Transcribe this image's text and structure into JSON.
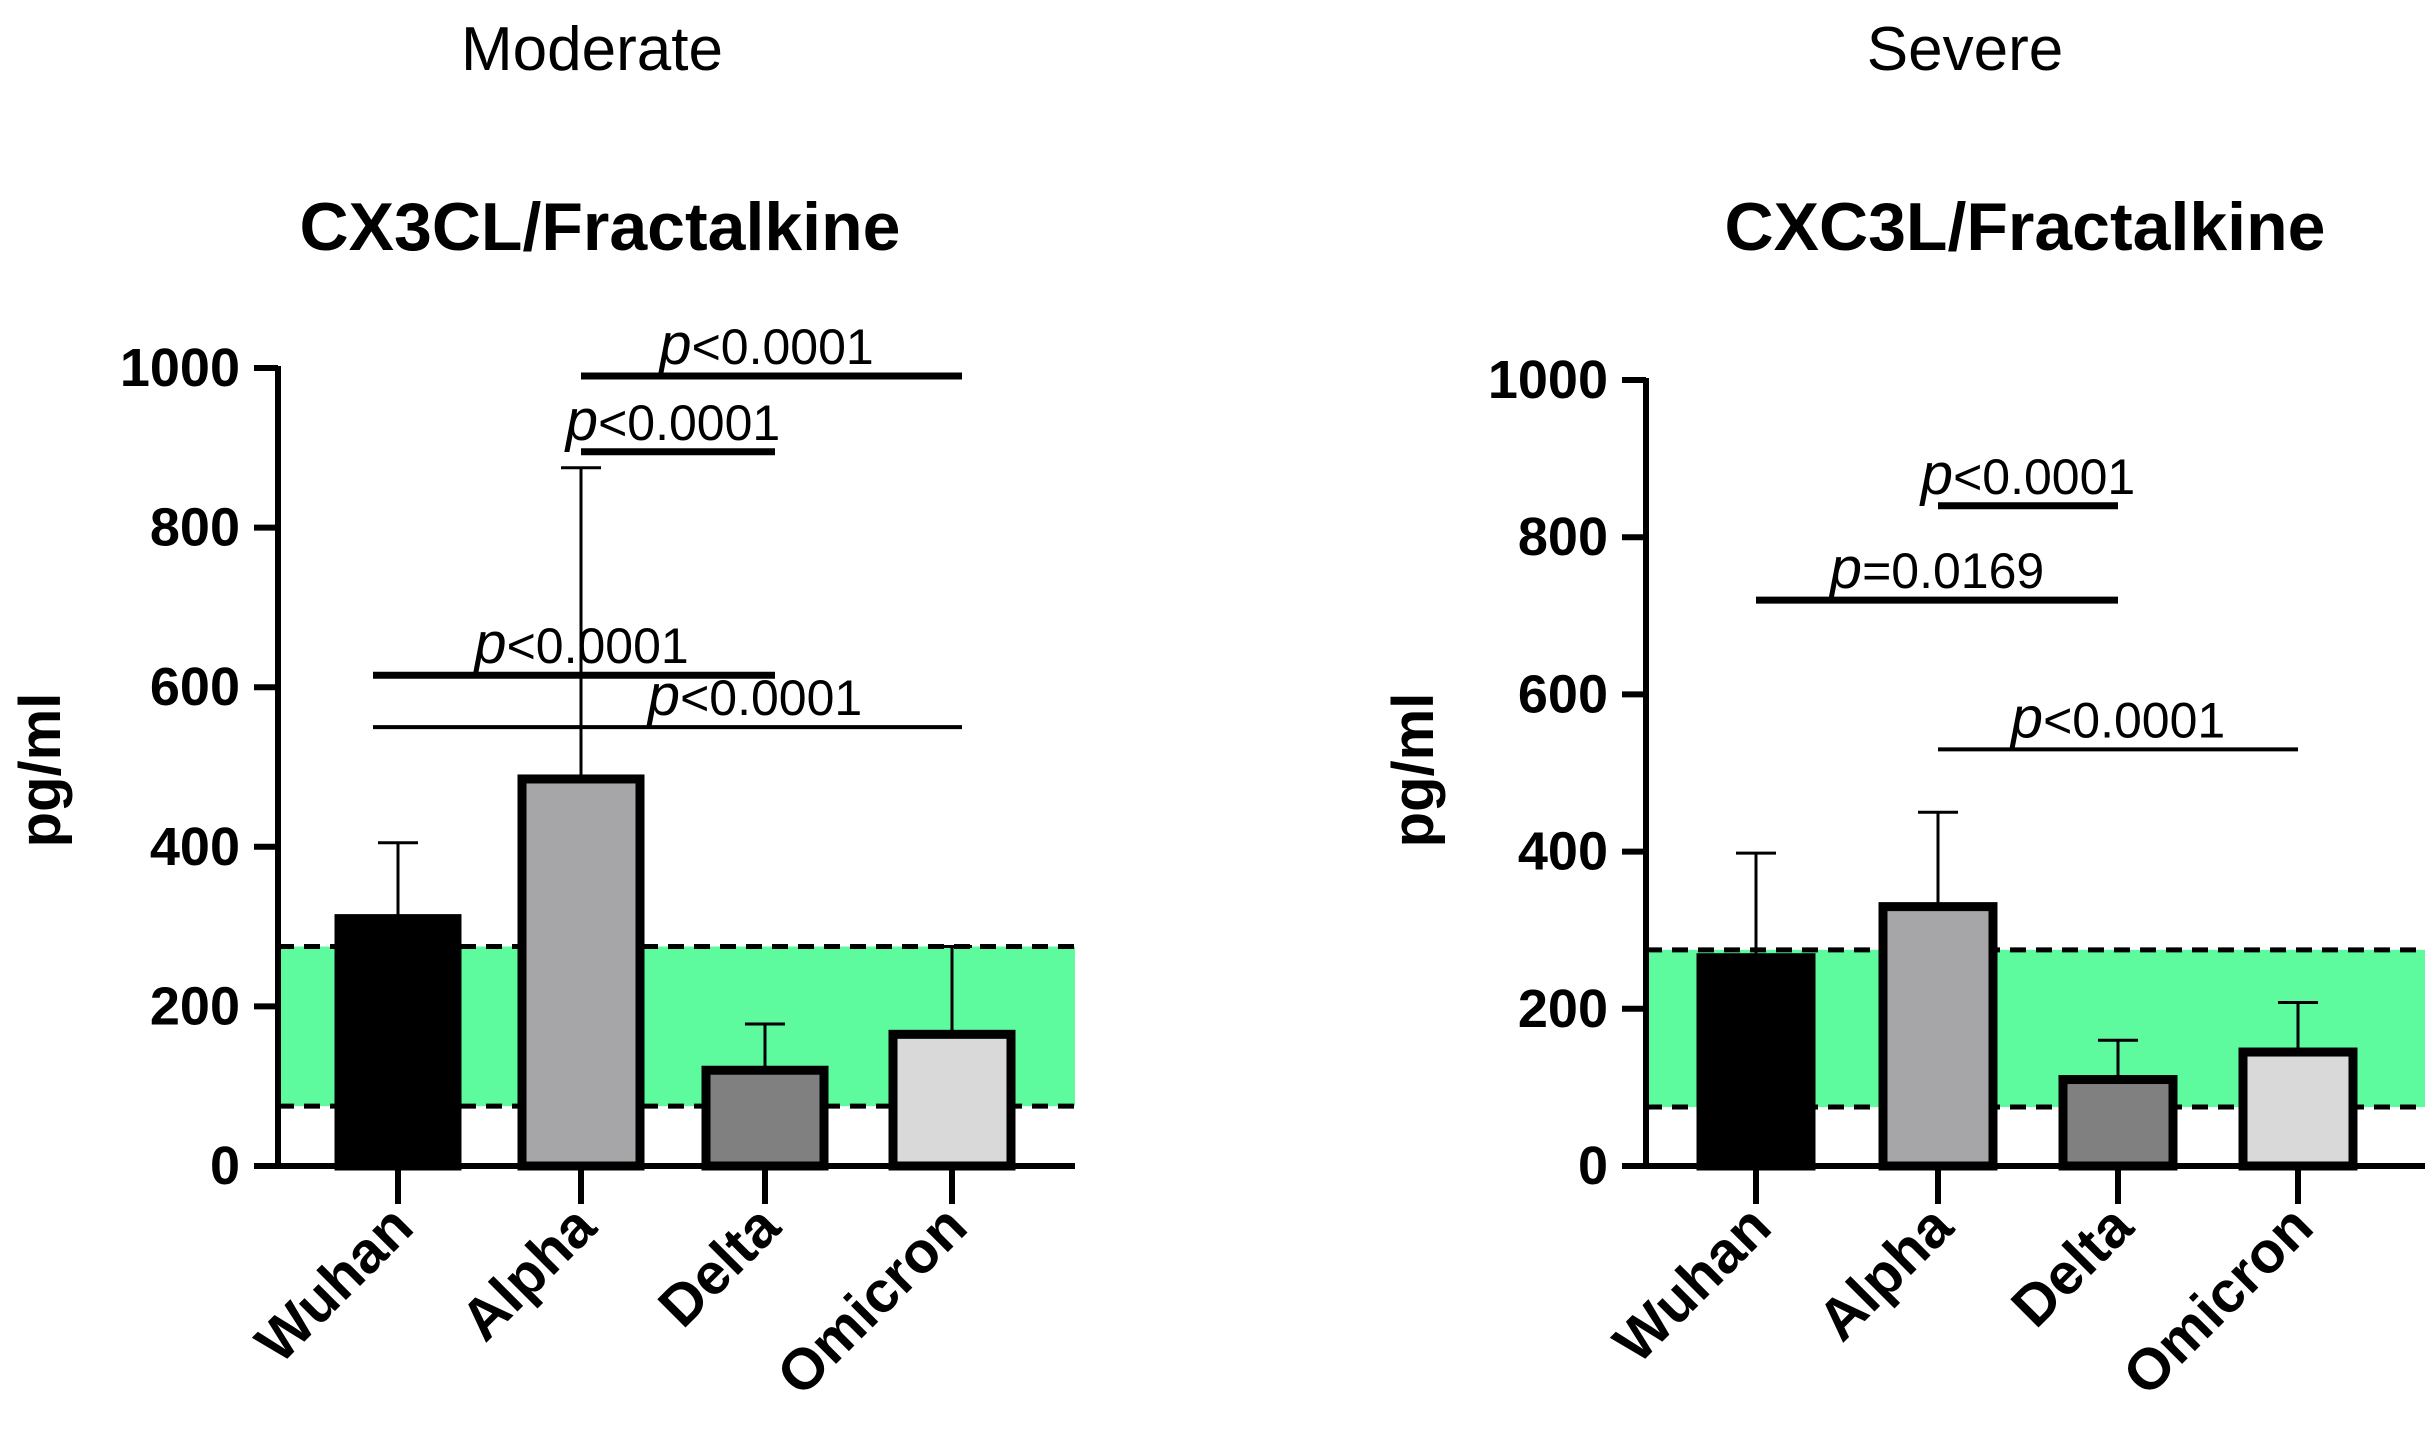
{
  "chart_data": [
    {
      "type": "bar",
      "panel_label": "Moderate",
      "title": "CX3CL/Fractalkine",
      "ylabel": "pg/ml",
      "xlabel": "",
      "ylim": [
        0,
        1000
      ],
      "yticks": [
        "0",
        "200",
        "400",
        "600",
        "800",
        "1000"
      ],
      "categories": [
        "Wuhan",
        "Alpha",
        "Delta",
        "Omicron"
      ],
      "values": [
        310,
        485,
        120,
        165
      ],
      "error_upper": [
        405,
        875,
        178,
        275
      ],
      "bar_colors": [
        "#000000",
        "#a6a6a9",
        "#808080",
        "#d9d9d9"
      ],
      "reference_band": {
        "low": 75,
        "high": 275,
        "color": "#5dfa9e"
      },
      "comparisons": [
        {
          "p": "p",
          "label": "<0.0001",
          "from": "Alpha",
          "to": "Omicron",
          "y": 990
        },
        {
          "p": "p",
          "label": "<0.0001",
          "from": "Alpha",
          "to": "Delta",
          "y": 895
        },
        {
          "p": "p",
          "label": "<0.0001",
          "from": "Wuhan",
          "to": "Delta",
          "y": 615
        },
        {
          "p": "p",
          "label": "<0.0001",
          "from": "Wuhan",
          "to": "Omicron",
          "y": 550
        }
      ]
    },
    {
      "type": "bar",
      "panel_label": "Severe",
      "title": "CXC3L/Fractalkine",
      "ylabel": "pg/ml",
      "xlabel": "",
      "ylim": [
        0,
        1000
      ],
      "yticks": [
        "0",
        "200",
        "400",
        "600",
        "800",
        "1000"
      ],
      "categories": [
        "Wuhan",
        "Alpha",
        "Delta",
        "Omicron"
      ],
      "values": [
        265,
        330,
        110,
        145
      ],
      "error_upper": [
        398,
        450,
        160,
        208
      ],
      "bar_colors": [
        "#000000",
        "#a6a6a9",
        "#808080",
        "#d9d9d9"
      ],
      "reference_band": {
        "low": 75,
        "high": 275,
        "color": "#5dfa9e"
      },
      "comparisons": [
        {
          "p": "p",
          "label": "<0.0001",
          "from": "Alpha",
          "to": "Delta",
          "y": 840
        },
        {
          "p": "p",
          "label": "=0.0169",
          "from": "Wuhan",
          "to": "Delta",
          "y": 720
        },
        {
          "p": "p",
          "label": "<0.0001",
          "from": "Alpha",
          "to": "Omicron",
          "y": 530
        }
      ]
    }
  ]
}
